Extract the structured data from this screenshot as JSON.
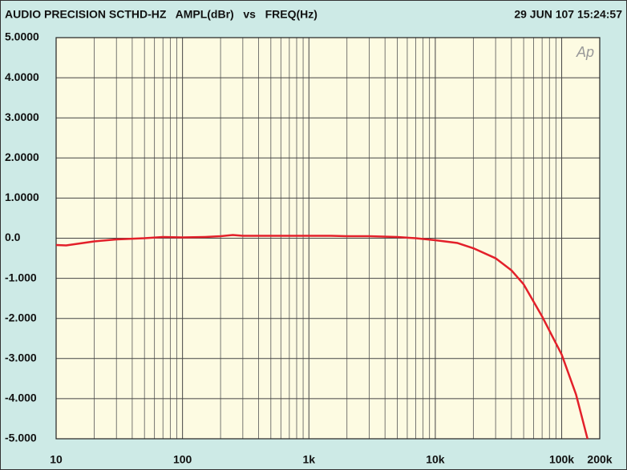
{
  "chart_data": {
    "type": "line",
    "title": "AUDIO PRECISION SCTHD-HZ   AMPL(dBr)   vs   FREQ(Hz)",
    "timestamp": "29 JUN 107 15:24:57",
    "logo": "Ap",
    "x": [
      10,
      12,
      20,
      30,
      50,
      70,
      100,
      150,
      200,
      250,
      300,
      500,
      1000,
      1500,
      2000,
      3000,
      5000,
      7000,
      10000,
      15000,
      20000,
      30000,
      40000,
      50000,
      70000,
      100000,
      130000,
      160000
    ],
    "series": [
      {
        "name": "AMPL(dBr)",
        "color": "#e3202a",
        "values": [
          -0.17,
          -0.18,
          -0.08,
          -0.03,
          0.0,
          0.03,
          0.02,
          0.03,
          0.05,
          0.08,
          0.06,
          0.06,
          0.06,
          0.06,
          0.05,
          0.05,
          0.03,
          0.0,
          -0.05,
          -0.12,
          -0.25,
          -0.5,
          -0.8,
          -1.15,
          -1.95,
          -2.9,
          -3.9,
          -5.0
        ]
      }
    ],
    "xscale": "log",
    "xlim": [
      10,
      200000
    ],
    "xticks": [
      10,
      100,
      {
        "value": 1000,
        "label": "1k"
      },
      {
        "value": 10000,
        "label": "10k"
      },
      {
        "value": 100000,
        "label": "100k"
      },
      {
        "value": 200000,
        "label": "200k"
      }
    ],
    "minor_xticks": [
      20,
      30,
      40,
      50,
      60,
      70,
      80,
      90,
      200,
      300,
      400,
      500,
      600,
      700,
      800,
      900,
      2000,
      3000,
      4000,
      5000,
      6000,
      7000,
      8000,
      9000,
      20000,
      30000,
      40000,
      50000,
      60000,
      70000,
      80000,
      90000
    ],
    "ylim": [
      -5,
      5
    ],
    "yticks": [
      {
        "value": 5,
        "label": "5.0000"
      },
      {
        "value": 4,
        "label": "4.0000"
      },
      {
        "value": 3,
        "label": "3.0000"
      },
      {
        "value": 2,
        "label": "2.0000"
      },
      {
        "value": 1,
        "label": "1.0000"
      },
      {
        "value": 0,
        "label": "0.0"
      },
      {
        "value": -1,
        "label": "-1.000"
      },
      {
        "value": -2,
        "label": "-2.000"
      },
      {
        "value": -3,
        "label": "-3.000"
      },
      {
        "value": -4,
        "label": "-4.000"
      },
      {
        "value": -5,
        "label": "-5.000"
      }
    ],
    "grid": true
  }
}
